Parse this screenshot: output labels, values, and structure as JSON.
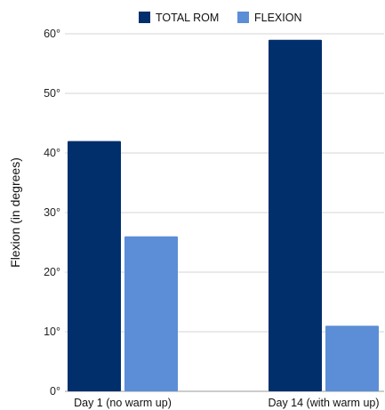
{
  "chart_data": {
    "type": "bar",
    "categories": [
      "Day 1 (no warm up)",
      "Day 14 (with warm up)"
    ],
    "series": [
      {
        "name": "TOTAL ROM",
        "color": "#002f6c",
        "values": [
          42,
          59
        ]
      },
      {
        "name": "FLEXION",
        "color": "#5b8ed6",
        "values": [
          26,
          11
        ]
      }
    ],
    "ylabel": "Flexion (in degrees)",
    "ylim": [
      0,
      60
    ],
    "yticks": [
      0,
      10,
      20,
      30,
      40,
      50,
      60
    ],
    "ytick_suffix": "°",
    "grid": true,
    "legend_position": "top"
  }
}
